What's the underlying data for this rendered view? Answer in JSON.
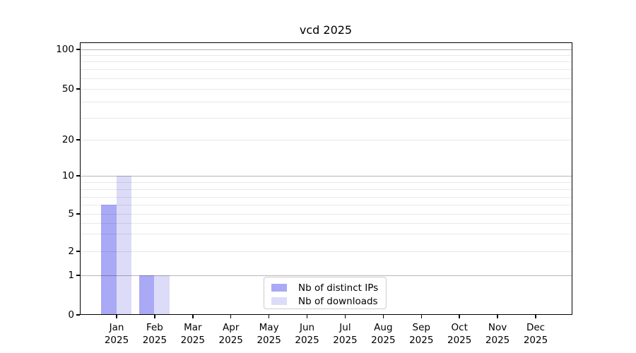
{
  "chart_data": {
    "type": "bar",
    "title": "vcd 2025",
    "categories": [
      "Jan",
      "Feb",
      "Mar",
      "Apr",
      "May",
      "Jun",
      "Jul",
      "Aug",
      "Sep",
      "Oct",
      "Nov",
      "Dec"
    ],
    "x_year_label": "2025",
    "series": [
      {
        "name": "Nb of distinct IPs",
        "color": "#a9a9f6",
        "values": [
          6,
          1,
          0,
          0,
          0,
          0,
          0,
          0,
          0,
          0,
          0,
          0
        ]
      },
      {
        "name": "Nb of downloads",
        "color": "#dcdcf8",
        "values": [
          10,
          1,
          0,
          0,
          0,
          0,
          0,
          0,
          0,
          0,
          0,
          0
        ]
      }
    ],
    "y_axis": {
      "scale": "log-like",
      "tick_values": [
        100,
        50,
        20,
        10,
        5,
        2,
        1,
        0
      ],
      "tick_labels": [
        "100",
        "50",
        "20",
        "10",
        "5",
        "2",
        "1",
        "0"
      ],
      "major_grid_values": [
        1,
        10,
        100
      ],
      "minor_grid_values": [
        2,
        3,
        4,
        5,
        6,
        7,
        8,
        9,
        20,
        30,
        40,
        50,
        60,
        70,
        80,
        90
      ],
      "ylim": [
        0,
        114
      ]
    },
    "legend": {
      "position": "lower center",
      "entries": [
        "Nb of distinct IPs",
        "Nb of downloads"
      ]
    },
    "colors": {
      "background": "#ffffff",
      "axis": "#000000",
      "text": "#000000",
      "major_grid": "#b6b6b6",
      "minor_grid": "#e8e8e8",
      "legend_border": "#cccccc"
    }
  }
}
